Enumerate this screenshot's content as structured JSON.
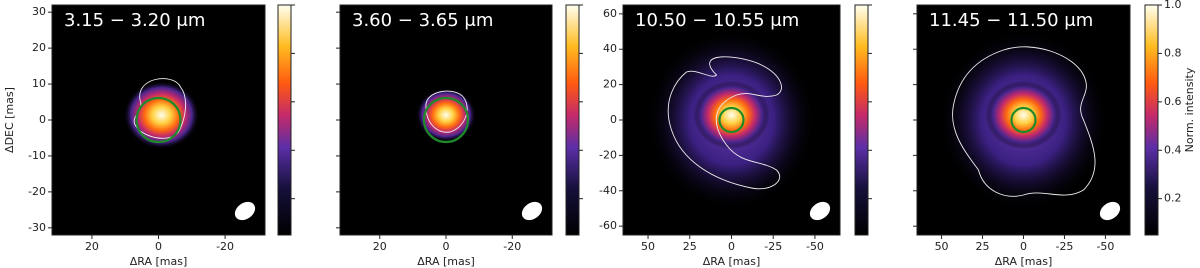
{
  "chart_data": [
    {
      "type": "image",
      "title": "3.15 − 3.20 μm",
      "xlabel": "ΔRA [mas]",
      "ylabel": "ΔDEC [mas]",
      "xlim": [
        32,
        -32
      ],
      "ylim": [
        -32,
        32
      ],
      "xticks": [
        20,
        0,
        -20
      ],
      "yticks": [
        -30,
        -20,
        -10,
        0,
        10,
        20,
        30
      ],
      "ytick_labels": true,
      "colorbar_labels": false
    },
    {
      "type": "image",
      "title": "3.60 − 3.65 μm",
      "xlabel": "ΔRA [mas]",
      "xlim": [
        32,
        -32
      ],
      "ylim": [
        -32,
        32
      ],
      "xticks": [
        20,
        0,
        -20
      ],
      "yticks": [
        -30,
        -20,
        -10,
        0,
        10,
        20,
        30
      ],
      "ytick_labels": false,
      "colorbar_labels": false
    },
    {
      "type": "image",
      "title": "10.50 − 10.55 μm",
      "xlabel": "ΔRA [mas]",
      "xlim": [
        65,
        -65
      ],
      "ylim": [
        -65,
        65
      ],
      "xticks": [
        50,
        25,
        0,
        -25,
        -50
      ],
      "yticks": [
        -60,
        -40,
        -20,
        0,
        20,
        40,
        60
      ],
      "ytick_labels": true,
      "colorbar_labels": false
    },
    {
      "type": "image",
      "title": "11.45 − 11.50 μm",
      "xlabel": "ΔRA [mas]",
      "xlim": [
        65,
        -65
      ],
      "ylim": [
        -65,
        65
      ],
      "xticks": [
        50,
        25,
        0,
        -25,
        -50
      ],
      "yticks": [
        -60,
        -40,
        -20,
        0,
        20,
        40,
        60
      ],
      "ytick_labels": false,
      "colorbar_labels": true,
      "colorbar_label": "Norm. intensity"
    }
  ],
  "colorbar": {
    "clim": [
      0.05,
      1.0
    ],
    "ticks": [
      0.2,
      0.4,
      0.6,
      0.8,
      {
        "value": 1.0,
        "label": "1.0"
      }
    ]
  }
}
